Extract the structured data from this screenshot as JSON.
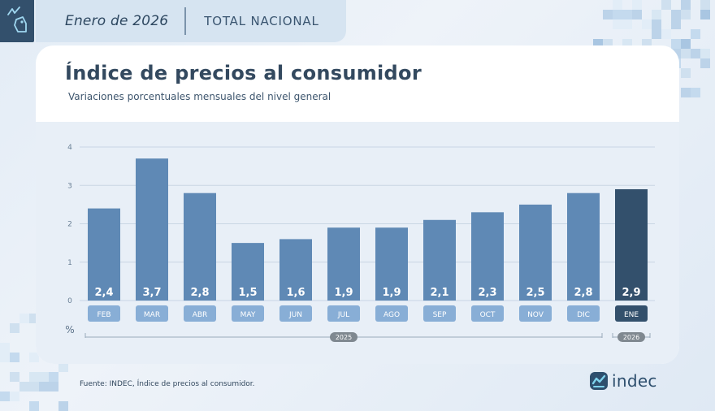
{
  "header": {
    "period": "Enero de 2026",
    "scope": "TOTAL NACIONAL"
  },
  "footer": {
    "source": "Fuente: INDEC, Índice de precios al consumidor."
  },
  "brand": {
    "name": "indec"
  },
  "icons": {
    "corner": "price-tag-icon",
    "logo": "indec-logo-icon"
  },
  "colors": {
    "bar": "#5f89b5",
    "bar_highlight": "#33506c",
    "pill": "#88aed6",
    "pill_highlight": "#33506c",
    "year_badge": "#7f8890",
    "grid": "#c9d6e4"
  },
  "chart_data": {
    "type": "bar",
    "title": "Índice de precios al consumidor",
    "subtitle": "Variaciones porcentuales mensuales del nivel general",
    "categories": [
      "FEB",
      "MAR",
      "ABR",
      "MAY",
      "JUN",
      "JUL",
      "AGO",
      "SEP",
      "OCT",
      "NOV",
      "DIC",
      "ENE"
    ],
    "values": [
      2.4,
      3.7,
      2.8,
      1.5,
      1.6,
      1.9,
      1.9,
      2.1,
      2.3,
      2.5,
      2.8,
      2.9
    ],
    "value_labels": [
      "2,4",
      "3,7",
      "2,8",
      "1,5",
      "1,6",
      "1,9",
      "1,9",
      "2,1",
      "2,3",
      "2,5",
      "2,8",
      "2,9"
    ],
    "highlight_index": 11,
    "ylabel": "%",
    "yticks": [
      0,
      1,
      2,
      3,
      4
    ],
    "ylim": [
      0,
      4
    ],
    "years": [
      {
        "label": "2025",
        "start": 0,
        "end": 10
      },
      {
        "label": "2026",
        "start": 11,
        "end": 11
      }
    ],
    "grid": true,
    "legend": "none"
  }
}
